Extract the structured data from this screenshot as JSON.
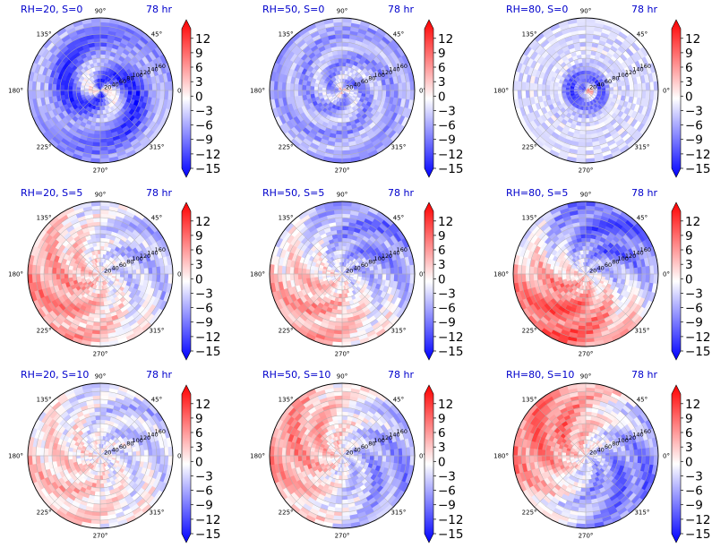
{
  "chart_data": {
    "type": "heatmap",
    "projection": "polar",
    "time_label": "78 hr",
    "angle_ticks": [
      "90°",
      "45°",
      "0°",
      "315°",
      "270°",
      "225°",
      "180°",
      "135°"
    ],
    "radial_ticks": [
      "20",
      "40",
      "60",
      "80",
      "100",
      "120",
      "140",
      "160"
    ],
    "rmax": 180,
    "colorbar": {
      "ticks": [
        "12",
        "9",
        "6",
        "3",
        "0",
        "−3",
        "−6",
        "−9",
        "−12",
        "−15"
      ],
      "vmin": -15,
      "vmax": 14,
      "extend": "both",
      "cmap": "bwr",
      "low_color": "#0000ff",
      "mid_color": "#ffffff",
      "high_color": "#ff0000"
    },
    "title_color": "#0000cc",
    "panels": [
      {
        "title": "RH=20, S=0",
        "row": 0,
        "col": 0,
        "bias": -5,
        "pattern": "spiral",
        "strength": 9,
        "phase": 0.6
      },
      {
        "title": "RH=50, S=0",
        "row": 0,
        "col": 1,
        "bias": -5,
        "pattern": "rings",
        "strength": 6,
        "phase": 0.0
      },
      {
        "title": "RH=80, S=0",
        "row": 0,
        "col": 2,
        "bias": -2,
        "pattern": "core",
        "strength": 7,
        "phase": 0.0
      },
      {
        "title": "RH=20, S=5",
        "row": 1,
        "col": 0,
        "bias": 1,
        "pattern": "dipole",
        "strength": 5,
        "phase": 3.6
      },
      {
        "title": "RH=50, S=5",
        "row": 1,
        "col": 1,
        "bias": -1,
        "pattern": "dipole",
        "strength": 6,
        "phase": 4.0
      },
      {
        "title": "RH=80, S=5",
        "row": 1,
        "col": 2,
        "bias": 0,
        "pattern": "dipole",
        "strength": 9,
        "phase": 4.2
      },
      {
        "title": "RH=20, S=10",
        "row": 2,
        "col": 0,
        "bias": 0,
        "pattern": "dipole",
        "strength": 3,
        "phase": 3.8
      },
      {
        "title": "RH=50, S=10",
        "row": 2,
        "col": 1,
        "bias": 0,
        "pattern": "dipole",
        "strength": 6,
        "phase": 2.9
      },
      {
        "title": "RH=80, S=10",
        "row": 2,
        "col": 2,
        "bias": 0,
        "pattern": "dipole",
        "strength": 8,
        "phase": 2.6
      }
    ]
  }
}
